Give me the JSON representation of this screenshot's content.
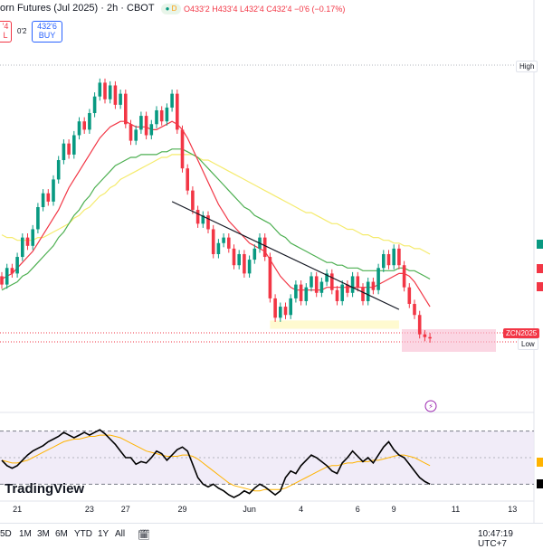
{
  "header": {
    "title": "orn Futures (Jul 2025) · 2h · CBOT",
    "open": "O433'2",
    "high": "H433'4",
    "low": "L432'4",
    "close": "C432'4",
    "change": "−0'6 (−0.17%)",
    "d_badge": "D",
    "sell_price": "'4",
    "sell_label": "L",
    "spread": "0'2",
    "buy_price": "432'6",
    "buy_label": "BUY"
  },
  "labels": {
    "high": "High",
    "low": "Low",
    "symbol": "ZCN2025",
    "brand": "TradingView",
    "clock": "10:47:19 UTC+7"
  },
  "ranges": [
    "5D",
    "1M",
    "3M",
    "6M",
    "YTD",
    "1Y",
    "All"
  ],
  "colors": {
    "up": "#089981",
    "down": "#f23645",
    "ma_fast": "#f23645",
    "ma_mid": "#4caf50",
    "ma_slow": "#f5eb6d",
    "trend": "#131722",
    "rsi": "#000000",
    "rsi_ma": "#ffb300"
  },
  "chart_data": {
    "type": "candlestick",
    "x_ticks": [
      {
        "label": "21",
        "bar": 3
      },
      {
        "label": "23",
        "bar": 17
      },
      {
        "label": "27",
        "bar": 24
      },
      {
        "label": "29",
        "bar": 35
      },
      {
        "label": "Jun",
        "bar": 48
      },
      {
        "label": "4",
        "bar": 58
      },
      {
        "label": "6",
        "bar": 69
      },
      {
        "label": "9",
        "bar": 76
      },
      {
        "label": "11",
        "bar": 88
      },
      {
        "label": "13",
        "bar": 99
      }
    ],
    "candles": [
      [
        455,
        452
      ],
      [
        452,
        458
      ],
      [
        458,
        456
      ],
      [
        456,
        462
      ],
      [
        462,
        469
      ],
      [
        469,
        466
      ],
      [
        466,
        472
      ],
      [
        472,
        480
      ],
      [
        480,
        485
      ],
      [
        485,
        482
      ],
      [
        482,
        490
      ],
      [
        490,
        497
      ],
      [
        497,
        503
      ],
      [
        503,
        499
      ],
      [
        499,
        506
      ],
      [
        506,
        511
      ],
      [
        511,
        508
      ],
      [
        508,
        514
      ],
      [
        514,
        520
      ],
      [
        520,
        525
      ],
      [
        525,
        519
      ],
      [
        519,
        524
      ],
      [
        524,
        517
      ],
      [
        517,
        521
      ],
      [
        521,
        510
      ],
      [
        510,
        504
      ],
      [
        504,
        508
      ],
      [
        508,
        513
      ],
      [
        513,
        506
      ],
      [
        506,
        510
      ],
      [
        510,
        515
      ],
      [
        515,
        511
      ],
      [
        511,
        516
      ],
      [
        516,
        521
      ],
      [
        521,
        508
      ],
      [
        508,
        494
      ],
      [
        494,
        486
      ],
      [
        486,
        479
      ],
      [
        479,
        474
      ],
      [
        474,
        477
      ],
      [
        477,
        472
      ],
      [
        472,
        463
      ],
      [
        463,
        467
      ],
      [
        467,
        469
      ],
      [
        469,
        465
      ],
      [
        465,
        459
      ],
      [
        459,
        463
      ],
      [
        463,
        456
      ],
      [
        456,
        461
      ],
      [
        461,
        465
      ],
      [
        465,
        469
      ],
      [
        469,
        462
      ],
      [
        462,
        447
      ],
      [
        447,
        440
      ],
      [
        440,
        444
      ],
      [
        444,
        441
      ],
      [
        441,
        447
      ],
      [
        447,
        452
      ],
      [
        452,
        446
      ],
      [
        446,
        451
      ],
      [
        451,
        455
      ],
      [
        455,
        449
      ],
      [
        449,
        453
      ],
      [
        453,
        456
      ],
      [
        456,
        450
      ],
      [
        450,
        446
      ],
      [
        446,
        452
      ],
      [
        452,
        449
      ],
      [
        449,
        455
      ],
      [
        455,
        451
      ],
      [
        451,
        446
      ],
      [
        446,
        453
      ],
      [
        453,
        450
      ],
      [
        450,
        458
      ],
      [
        458,
        463
      ],
      [
        463,
        459
      ],
      [
        459,
        465
      ],
      [
        465,
        459
      ],
      [
        459,
        451
      ],
      [
        451,
        445
      ],
      [
        445,
        441
      ],
      [
        441,
        434
      ],
      [
        434,
        433
      ],
      [
        433,
        432.5
      ]
    ],
    "ma_fast": [
      454,
      455,
      456,
      458,
      460,
      462,
      464,
      467,
      470,
      473,
      476,
      479,
      483,
      487,
      490,
      493,
      496,
      499,
      502,
      505,
      507,
      509,
      510,
      511,
      511,
      510,
      509,
      509,
      509,
      508,
      508,
      509,
      510,
      511,
      510,
      508,
      505,
      501,
      497,
      493,
      489,
      485,
      481,
      478,
      475,
      473,
      471,
      469,
      467,
      466,
      465,
      464,
      461,
      458,
      455,
      453,
      451,
      450,
      450,
      450,
      450,
      450,
      450,
      451,
      451,
      451,
      451,
      451,
      451,
      451,
      451,
      451,
      451,
      452,
      453,
      454,
      455,
      456,
      456,
      455,
      453,
      450,
      447,
      444
    ],
    "ma_mid": [
      450,
      451,
      452,
      453,
      455,
      456,
      458,
      460,
      462,
      464,
      466,
      469,
      471,
      474,
      477,
      479,
      482,
      484,
      487,
      489,
      491,
      493,
      495,
      496,
      497,
      498,
      498,
      499,
      499,
      499,
      499,
      500,
      500,
      501,
      501,
      501,
      500,
      499,
      498,
      496,
      494,
      492,
      490,
      488,
      486,
      484,
      482,
      480,
      479,
      477,
      476,
      475,
      474,
      472,
      470,
      469,
      467,
      466,
      465,
      464,
      463,
      462,
      461,
      460,
      460,
      459,
      459,
      458,
      458,
      458,
      457,
      457,
      457,
      457,
      457,
      457,
      457,
      458,
      458,
      457,
      457,
      456,
      455,
      454
    ],
    "ma_slow": [
      470,
      469,
      469,
      468,
      468,
      468,
      468,
      469,
      469,
      470,
      471,
      472,
      473,
      474,
      476,
      477,
      479,
      480,
      482,
      484,
      485,
      487,
      488,
      490,
      491,
      492,
      493,
      494,
      495,
      496,
      497,
      498,
      498,
      499,
      499,
      499,
      499,
      499,
      498,
      497,
      497,
      496,
      495,
      494,
      493,
      492,
      491,
      490,
      489,
      488,
      487,
      486,
      485,
      484,
      483,
      482,
      481,
      480,
      479,
      478,
      478,
      477,
      476,
      475,
      474,
      474,
      473,
      472,
      472,
      471,
      470,
      470,
      469,
      469,
      468,
      468,
      467,
      467,
      466,
      466,
      465,
      465,
      464,
      463
    ],
    "trend_line": [
      [
        33,
        482
      ],
      [
        77,
        443
      ]
    ],
    "support_zone": [
      436,
      439
    ],
    "rsi": [
      48,
      44,
      42,
      44,
      48,
      52,
      55,
      57,
      59,
      62,
      64,
      66,
      69,
      67,
      65,
      67,
      69,
      67,
      69,
      71,
      68,
      64,
      60,
      55,
      50,
      50,
      45,
      47,
      46,
      50,
      55,
      53,
      48,
      52,
      56,
      58,
      55,
      45,
      35,
      30,
      28,
      30,
      27,
      25,
      22,
      20,
      22,
      25,
      23,
      27,
      30,
      28,
      25,
      22,
      25,
      35,
      40,
      38,
      44,
      48,
      52,
      50,
      47,
      44,
      40,
      38,
      46,
      50,
      55,
      51,
      47,
      50,
      46,
      52,
      58,
      62,
      56,
      52,
      50,
      45,
      40,
      35,
      32,
      30
    ],
    "rsi_ma": [
      48,
      47,
      46,
      46,
      47,
      48,
      50,
      52,
      54,
      56,
      58,
      60,
      62,
      63,
      64,
      64,
      65,
      66,
      66,
      67,
      67,
      67,
      66,
      65,
      63,
      61,
      59,
      57,
      55,
      54,
      53,
      52,
      51,
      51,
      51,
      52,
      52,
      51,
      49,
      46,
      43,
      40,
      37,
      34,
      31,
      29,
      28,
      27,
      26,
      25,
      25,
      26,
      26,
      26,
      26,
      27,
      29,
      31,
      33,
      35,
      37,
      39,
      41,
      43,
      44,
      44,
      45,
      46,
      46,
      47,
      47,
      47,
      48,
      48,
      49,
      50,
      51,
      52,
      52,
      51,
      50,
      48,
      46,
      44
    ],
    "y_price_range": [
      428,
      532
    ],
    "y_rsi_range": [
      20,
      80
    ],
    "rsi_bands": [
      30,
      70
    ]
  }
}
